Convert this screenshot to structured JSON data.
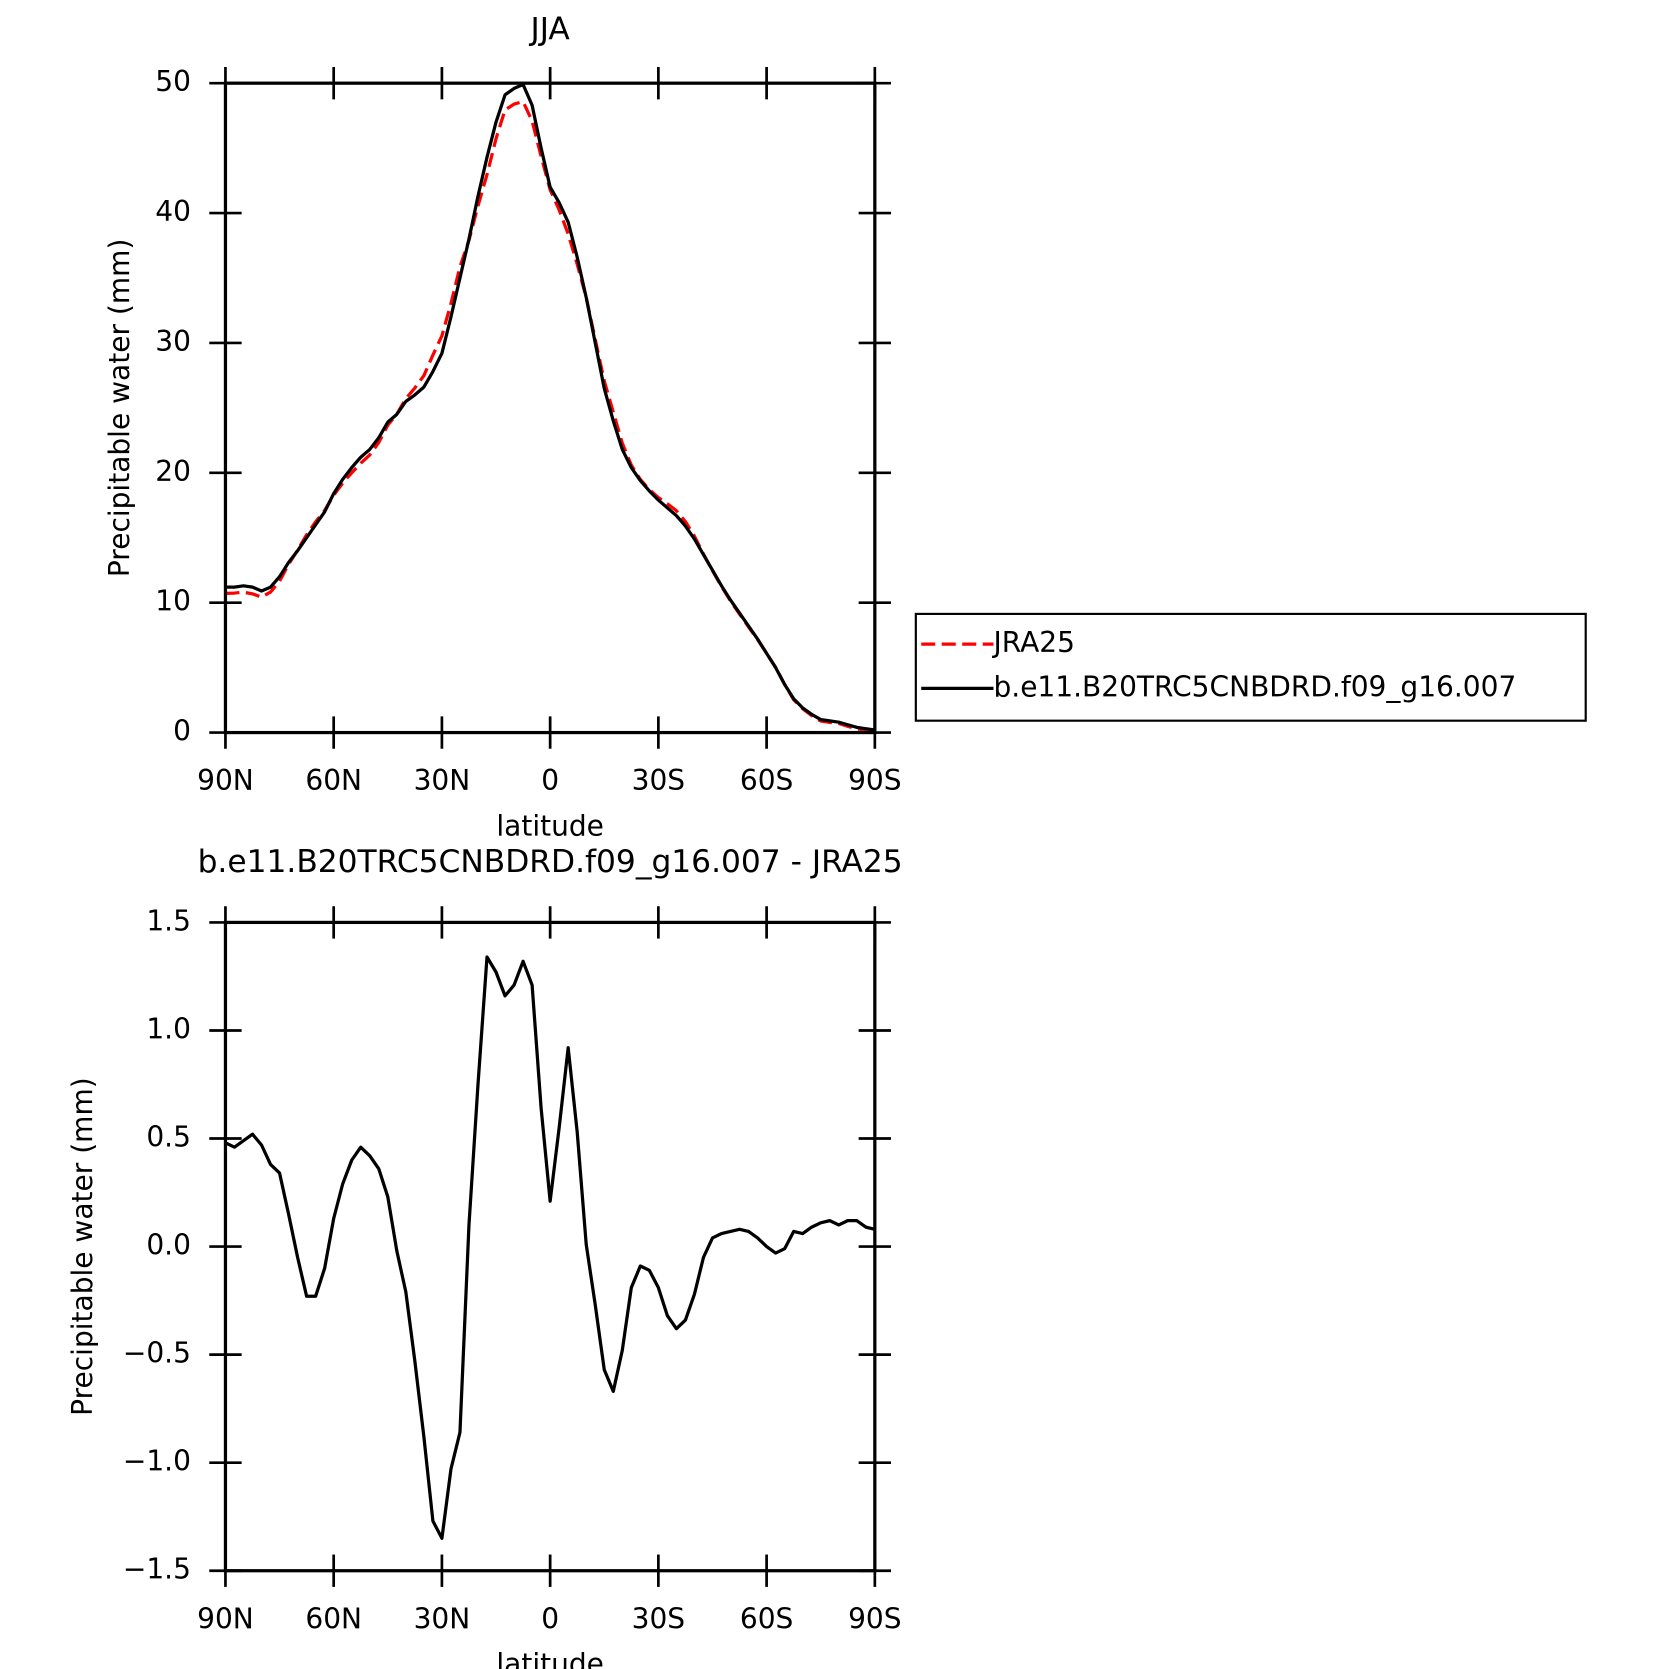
{
  "chart_data": [
    {
      "type": "line",
      "title": "JJA",
      "x_label": "latitude",
      "y_label": "Precipitable water (mm)",
      "x": [
        90,
        87.5,
        85,
        82.5,
        80,
        77.5,
        75,
        72.5,
        70,
        67.5,
        65,
        62.5,
        60,
        57.5,
        55,
        52.5,
        50,
        47.5,
        45,
        42.5,
        40,
        37.5,
        35,
        32.5,
        30,
        27.5,
        25,
        22.5,
        20,
        17.5,
        15,
        12.5,
        10,
        7.5,
        5,
        2.5,
        0,
        -2.5,
        -5,
        -7.5,
        -10,
        -12.5,
        -15,
        -17.5,
        -20,
        -22.5,
        -25,
        -27.5,
        -30,
        -32.5,
        -35,
        -37.5,
        -40,
        -42.5,
        -45,
        -47.5,
        -50,
        -52.5,
        -55,
        -57.5,
        -60,
        -62.5,
        -65,
        -67.5,
        -70,
        -72.5,
        -75,
        -77.5,
        -80,
        -82.5,
        -85,
        -87.5,
        -90
      ],
      "xlim": [
        90,
        -90
      ],
      "xticks": [
        {
          "value": 90,
          "label": "90N"
        },
        {
          "value": 60,
          "label": "60N"
        },
        {
          "value": 30,
          "label": "30N"
        },
        0,
        {
          "value": -30,
          "label": "30S"
        },
        {
          "value": -60,
          "label": "60S"
        },
        {
          "value": -90,
          "label": "90S"
        }
      ],
      "ylim": [
        0,
        50
      ],
      "yticks": [
        0,
        10,
        20,
        30,
        40,
        50
      ],
      "legend": "right",
      "series": [
        {
          "name": "JRA25",
          "color": "#ff0000",
          "dashed": true,
          "values": [
            10.72,
            10.74,
            10.81,
            10.68,
            10.43,
            10.82,
            11.66,
            12.95,
            14.05,
            15.23,
            16.23,
            17.1,
            18.27,
            19.21,
            20.0,
            20.74,
            21.38,
            22.34,
            23.67,
            24.52,
            25.71,
            26.53,
            27.48,
            29.07,
            30.55,
            33.03,
            35.86,
            37.9,
            40.55,
            42.96,
            45.73,
            47.94,
            48.39,
            48.58,
            47.09,
            44.36,
            41.79,
            40.25,
            38.38,
            36.07,
            33.49,
            30.27,
            27.07,
            24.67,
            22.28,
            20.59,
            19.49,
            18.71,
            18.09,
            17.62,
            17.08,
            16.24,
            15.12,
            13.75,
            12.46,
            11.24,
            10.13,
            9.12,
            8.13,
            7.16,
            6.1,
            5.03,
            3.71,
            2.53,
            1.84,
            1.31,
            0.89,
            0.78,
            0.7,
            0.48,
            0.28,
            0.21,
            0.12
          ]
        },
        {
          "name": "b.e11.B20TRC5CNBDRD.f09_g16.007",
          "color": "#000000",
          "dashed": false,
          "values": [
            11.2,
            11.2,
            11.3,
            11.2,
            10.9,
            11.2,
            12.0,
            13.1,
            14.0,
            15.0,
            16.0,
            17.0,
            18.4,
            19.5,
            20.4,
            21.2,
            21.8,
            22.7,
            23.9,
            24.5,
            25.5,
            26.0,
            26.6,
            27.8,
            29.2,
            32.0,
            35.0,
            38.0,
            41.3,
            44.3,
            47.0,
            49.1,
            49.6,
            49.9,
            48.3,
            45.0,
            42.0,
            40.8,
            39.3,
            36.6,
            33.5,
            30.0,
            26.5,
            24.0,
            21.8,
            20.4,
            19.4,
            18.6,
            17.9,
            17.3,
            16.7,
            15.9,
            14.9,
            13.7,
            12.5,
            11.3,
            10.2,
            9.2,
            8.2,
            7.2,
            6.1,
            5.0,
            3.7,
            2.6,
            1.9,
            1.4,
            1.0,
            0.9,
            0.8,
            0.6,
            0.4,
            0.3,
            0.2
          ]
        }
      ]
    },
    {
      "type": "line",
      "title": "b.e11.B20TRC5CNBDRD.f09_g16.007 - JRA25",
      "x_label": "latitude",
      "y_label": "Precipitable water (mm)",
      "x": [
        90,
        87.5,
        85,
        82.5,
        80,
        77.5,
        75,
        72.5,
        70,
        67.5,
        65,
        62.5,
        60,
        57.5,
        55,
        52.5,
        50,
        47.5,
        45,
        42.5,
        40,
        37.5,
        35,
        32.5,
        30,
        27.5,
        25,
        22.5,
        20,
        17.5,
        15,
        12.5,
        10,
        7.5,
        5,
        2.5,
        0,
        -2.5,
        -5,
        -7.5,
        -10,
        -12.5,
        -15,
        -17.5,
        -20,
        -22.5,
        -25,
        -27.5,
        -30,
        -32.5,
        -35,
        -37.5,
        -40,
        -42.5,
        -45,
        -47.5,
        -50,
        -52.5,
        -55,
        -57.5,
        -60,
        -62.5,
        -65,
        -67.5,
        -70,
        -72.5,
        -75,
        -77.5,
        -80,
        -82.5,
        -85,
        -87.5,
        -90
      ],
      "xlim": [
        90,
        -90
      ],
      "xticks": [
        {
          "value": 90,
          "label": "90N"
        },
        {
          "value": 60,
          "label": "60N"
        },
        {
          "value": 30,
          "label": "30N"
        },
        0,
        {
          "value": -30,
          "label": "30S"
        },
        {
          "value": -60,
          "label": "60S"
        },
        {
          "value": -90,
          "label": "90S"
        }
      ],
      "ylim": [
        -1.5,
        1.5
      ],
      "yticks": [
        {
          "value": -1.5,
          "label": "−1.5"
        },
        {
          "value": -1,
          "label": "−1.0"
        },
        {
          "value": -0.5,
          "label": "−0.5"
        },
        {
          "value": 0,
          "label": "0.0"
        },
        0.5,
        {
          "value": 1,
          "label": "1.0"
        },
        1.5
      ],
      "color": "#000000",
      "values": [
        0.48,
        0.46,
        0.49,
        0.52,
        0.47,
        0.38,
        0.34,
        0.15,
        -0.05,
        -0.23,
        -0.23,
        -0.1,
        0.13,
        0.29,
        0.4,
        0.46,
        0.42,
        0.36,
        0.23,
        -0.02,
        -0.21,
        -0.53,
        -0.88,
        -1.27,
        -1.35,
        -1.03,
        -0.86,
        0.1,
        0.75,
        1.34,
        1.27,
        1.16,
        1.21,
        1.32,
        1.21,
        0.64,
        0.21,
        0.55,
        0.92,
        0.53,
        0.01,
        -0.27,
        -0.57,
        -0.67,
        -0.48,
        -0.19,
        -0.09,
        -0.11,
        -0.19,
        -0.32,
        -0.38,
        -0.34,
        -0.22,
        -0.05,
        0.04,
        0.06,
        0.07,
        0.08,
        0.07,
        0.04,
        0.0,
        -0.03,
        -0.01,
        0.07,
        0.06,
        0.09,
        0.11,
        0.12,
        0.1,
        0.12,
        0.12,
        0.09,
        0.08
      ]
    }
  ]
}
